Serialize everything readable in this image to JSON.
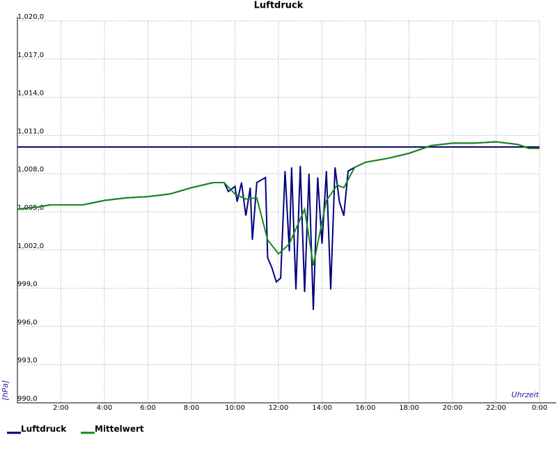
{
  "chart_data": {
    "type": "line",
    "title": "Luftdruck",
    "y_label": "[hPa]",
    "x_label": "Uhrzeit",
    "xlim": [
      0,
      24
    ],
    "ylim": [
      990,
      1020
    ],
    "xticks": [
      {
        "value": 2,
        "label": "2:00"
      },
      {
        "value": 4,
        "label": "4:00"
      },
      {
        "value": 6,
        "label": "6:00"
      },
      {
        "value": 8,
        "label": "8:00"
      },
      {
        "value": 10,
        "label": "10:00"
      },
      {
        "value": 12,
        "label": "12:00"
      },
      {
        "value": 14,
        "label": "14:00"
      },
      {
        "value": 16,
        "label": "16:00"
      },
      {
        "value": 18,
        "label": "18:00"
      },
      {
        "value": 20,
        "label": "20:00"
      },
      {
        "value": 22,
        "label": "22:00"
      },
      {
        "value": 24,
        "label": "0:00"
      }
    ],
    "yticks": [
      {
        "value": 990,
        "label": "990,0"
      },
      {
        "value": 993,
        "label": "993,0"
      },
      {
        "value": 996,
        "label": "996,0"
      },
      {
        "value": 999,
        "label": "999,0"
      },
      {
        "value": 1002,
        "label": "1,002,0"
      },
      {
        "value": 1005,
        "label": "1,005,0"
      },
      {
        "value": 1008,
        "label": "1,008,0"
      },
      {
        "value": 1011,
        "label": "1,011,0"
      },
      {
        "value": 1014,
        "label": "1,014,0"
      },
      {
        "value": 1017,
        "label": "1,017,0"
      },
      {
        "value": 1020,
        "label": "1,020,0"
      }
    ],
    "grid": true,
    "reference_line": 1010.1,
    "reference_color": "#000066",
    "series": [
      {
        "name": "Luftdruck",
        "color": "#000080",
        "x": [
          0,
          1,
          1.5,
          3,
          4,
          5,
          6,
          7,
          8,
          8.5,
          9,
          9.5,
          9.7,
          10,
          10.1,
          10.3,
          10.5,
          10.7,
          10.8,
          11,
          11.2,
          11.4,
          11.5,
          11.7,
          11.9,
          12.1,
          12.3,
          12.5,
          12.6,
          12.8,
          13,
          13.2,
          13.4,
          13.6,
          13.8,
          14,
          14.2,
          14.4,
          14.6,
          14.8,
          15,
          15.2,
          15.5,
          16,
          17,
          18,
          19,
          20,
          21,
          22,
          23,
          23.5,
          24
        ],
        "values": [
          1005.2,
          1005.4,
          1005.55,
          1005.55,
          1005.9,
          1006.1,
          1006.2,
          1006.4,
          1006.9,
          1007.1,
          1007.3,
          1007.3,
          1006.6,
          1007.0,
          1005.8,
          1007.3,
          1004.7,
          1006.9,
          1002.8,
          1007.3,
          1007.5,
          1007.7,
          1001.4,
          1000.6,
          999.5,
          999.8,
          1008.2,
          1001.9,
          1008.5,
          998.9,
          1008.6,
          998.7,
          1008.0,
          997.3,
          1007.7,
          1002.5,
          1008.2,
          998.9,
          1008.5,
          1005.8,
          1004.7,
          1008.2,
          1008.5,
          1008.9,
          1009.2,
          1009.6,
          1010.2,
          1010.4,
          1010.4,
          1010.5,
          1010.3,
          1010.0,
          1010.0
        ]
      },
      {
        "name": "Mittelwert",
        "color": "#168a16",
        "x": [
          0,
          1,
          1.5,
          3,
          4,
          5,
          6,
          7,
          8,
          8.5,
          9,
          9.5,
          10,
          10.5,
          11,
          11.5,
          12,
          12.5,
          13.2,
          13.6,
          14.2,
          14.7,
          15,
          15.5,
          16,
          17,
          18,
          19,
          20,
          21,
          22,
          23,
          23.5,
          24
        ],
        "values": [
          1005.2,
          1005.4,
          1005.55,
          1005.55,
          1005.9,
          1006.1,
          1006.2,
          1006.4,
          1006.9,
          1007.1,
          1007.3,
          1007.3,
          1006.4,
          1006.0,
          1006.1,
          1002.8,
          1001.7,
          1002.5,
          1005.2,
          1000.8,
          1005.9,
          1007.1,
          1006.9,
          1008.5,
          1008.9,
          1009.2,
          1009.6,
          1010.2,
          1010.4,
          1010.4,
          1010.5,
          1010.3,
          1010.0,
          1010.0
        ]
      }
    ]
  }
}
